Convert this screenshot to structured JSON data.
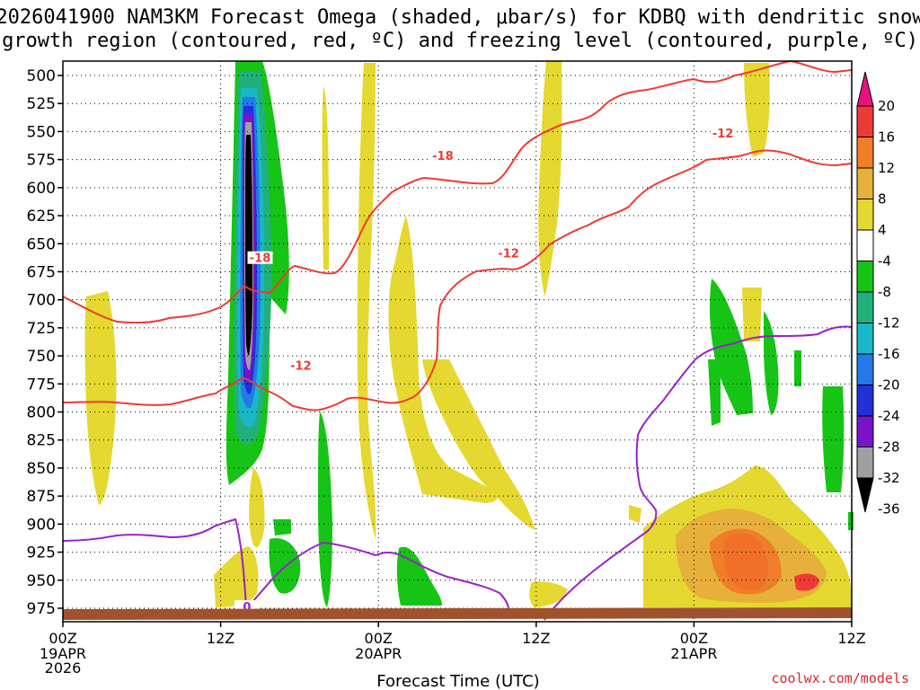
{
  "title_line1": "2026041900 NAM3KM Forecast Omega (shaded, μbar/s) for KDBQ with dendritic snow",
  "title_line2": "growth region (contoured, red, ºC) and freezing level (contoured, purple, ºC)",
  "credit": "coolwx.com/models",
  "chart_data": {
    "type": "heatmap",
    "xlabel": "Forecast Time (UTC)",
    "ylabel": "",
    "x_ticks": [
      {
        "hour": 0,
        "label": "00Z",
        "sub": [
          "19APR",
          "2026"
        ]
      },
      {
        "hour": 12,
        "label": "12Z",
        "sub": []
      },
      {
        "hour": 24,
        "label": "00Z",
        "sub": [
          "20APR"
        ]
      },
      {
        "hour": 36,
        "label": "12Z",
        "sub": []
      },
      {
        "hour": 48,
        "label": "00Z",
        "sub": [
          "21APR"
        ]
      },
      {
        "hour": 60,
        "label": "12Z",
        "sub": []
      }
    ],
    "xlim": [
      0,
      60
    ],
    "ylim": [
      990,
      490
    ],
    "y_ticks": [
      500,
      525,
      550,
      575,
      600,
      625,
      650,
      675,
      700,
      725,
      750,
      775,
      800,
      825,
      850,
      875,
      900,
      925,
      950,
      975
    ],
    "grid": true,
    "colorbar": {
      "labels": [
        "20",
        "16",
        "12",
        "8",
        "4",
        "-4",
        "-8",
        "-12",
        "-16",
        "-20",
        "-24",
        "-28",
        "-32",
        "-36"
      ],
      "colors": [
        "#e8127c",
        "#ee3a36",
        "#f07d28",
        "#e6b03a",
        "#e5d830",
        "#ffffff",
        "#16c416",
        "#22b07a",
        "#18b8c8",
        "#2478e8",
        "#2230d8",
        "#7a12c8",
        "#a0a0a0",
        "#000000"
      ]
    },
    "contour_labels": [
      {
        "text": "-18",
        "hour": 28.9,
        "p": 573
      },
      {
        "text": "-12",
        "hour": 33.9,
        "p": 660
      },
      {
        "text": "-12",
        "hour": 50.2,
        "p": 553
      },
      {
        "text": "-18",
        "hour": 15.0,
        "p": 664
      },
      {
        "text": "-12",
        "hour": 18.1,
        "p": 760
      },
      {
        "text": "0",
        "hour": 14.0,
        "p": 975
      }
    ]
  }
}
